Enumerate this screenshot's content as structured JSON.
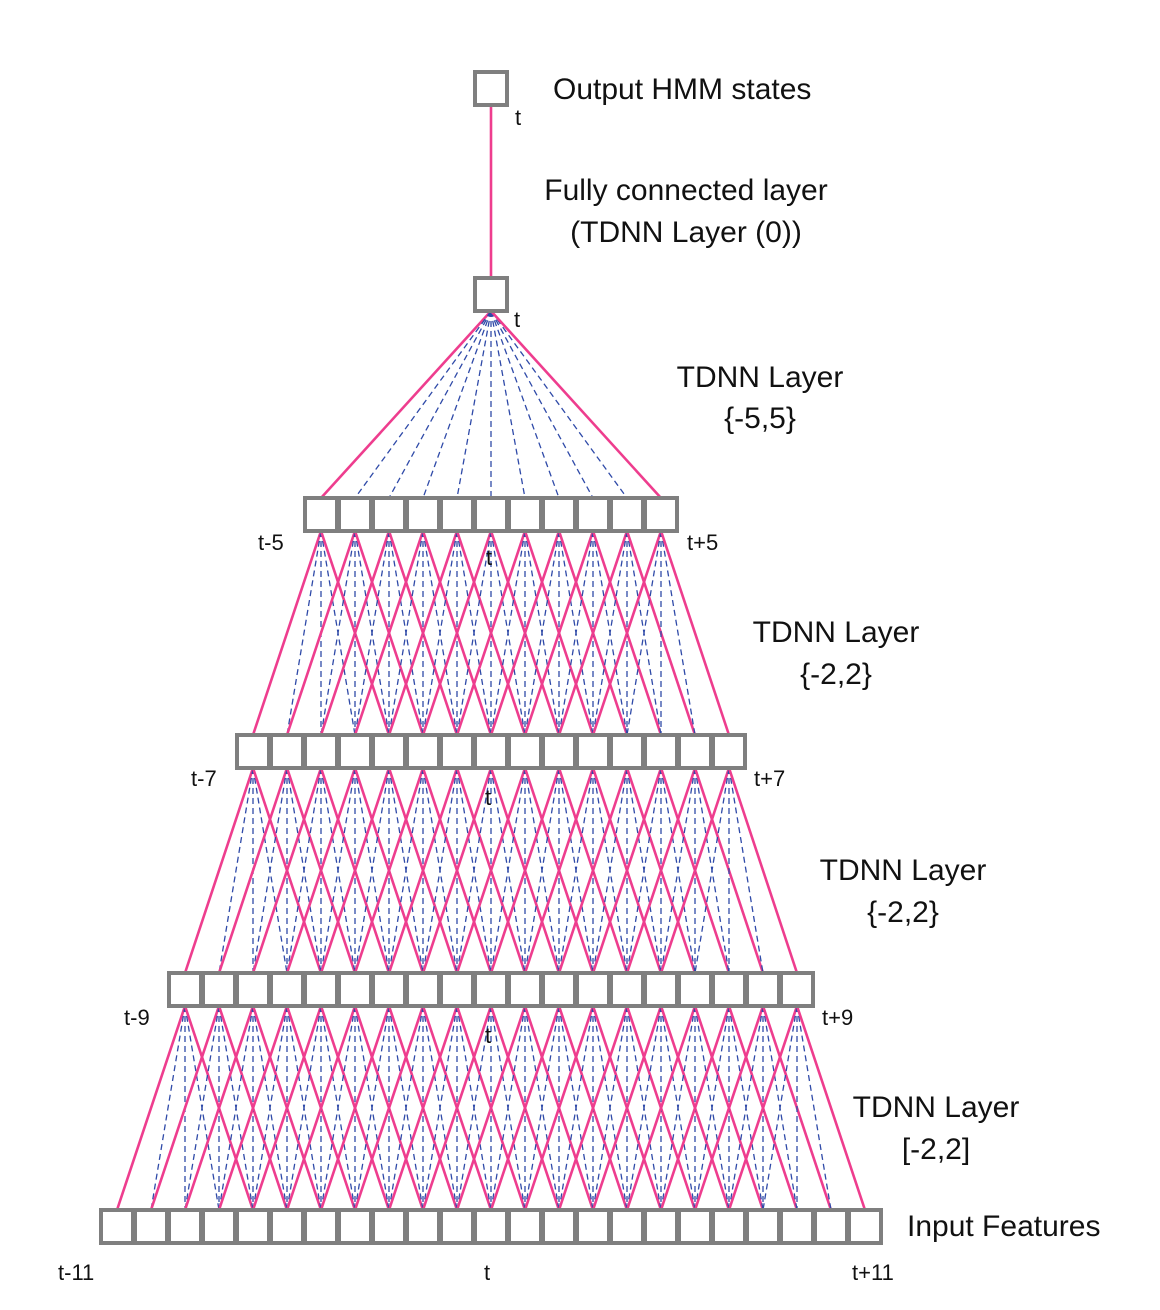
{
  "colors": {
    "solid_connection": "#ee3d8e",
    "dashed_connection": "#2f4aa8",
    "node_border": "#7f7f7f"
  },
  "labels": {
    "output_title": "Output HMM states",
    "output_t": "t",
    "fc_title": "Fully connected layer",
    "fc_subtitle": "(TDNN Layer (0))",
    "l1_t": "t",
    "l1_title": "TDNN Layer",
    "l1_context": "{-5,5}",
    "l2_left": "t-5",
    "l2_right": "t+5",
    "l2_center": "t",
    "l2_title": "TDNN Layer",
    "l2_context": "{-2,2}",
    "l3_left": "t-7",
    "l3_right": "t+7",
    "l3_center": "t",
    "l3_title": "TDNN Layer",
    "l3_context": "{-2,2}",
    "l4_left": "t-9",
    "l4_right": "t+9",
    "l4_center": "t",
    "l4_title": "TDNN Layer",
    "l4_context": "[-2,2]",
    "input_title": "Input Features",
    "in_left": "t-11",
    "in_center": "t",
    "in_right": "t+11"
  },
  "layers": [
    {
      "name": "output",
      "nodes": 1,
      "offsets": [
        0
      ]
    },
    {
      "name": "fully-connected",
      "nodes": 1,
      "offsets": [
        0
      ]
    },
    {
      "name": "tdnn-5-5",
      "nodes": 11,
      "offsets": [
        -5,
        5
      ]
    },
    {
      "name": "tdnn-2-2-a",
      "nodes": 15,
      "offsets": [
        -2,
        2
      ]
    },
    {
      "name": "tdnn-2-2-b",
      "nodes": 19,
      "offsets": [
        -2,
        2
      ]
    },
    {
      "name": "input",
      "nodes": 23,
      "offsets": [
        -2,
        2
      ]
    }
  ]
}
